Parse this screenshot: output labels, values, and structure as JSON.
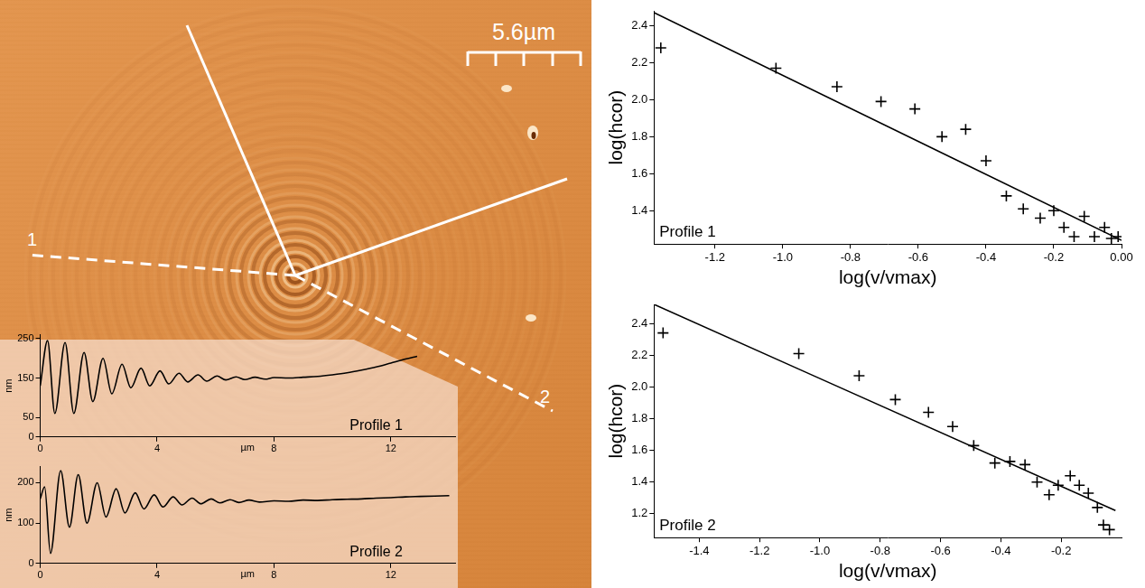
{
  "scale_bar": "5.6µm",
  "line_labels": [
    "1",
    "2"
  ],
  "chart_data": [
    {
      "type": "line",
      "title": "Profile 1",
      "xlabel": "µm",
      "ylabel": "nm",
      "color": "#000000",
      "x": [
        0,
        0.25,
        0.5,
        0.85,
        1.15,
        1.5,
        1.8,
        2.15,
        2.45,
        2.8,
        3.1,
        3.45,
        3.75,
        4.1,
        4.4,
        4.75,
        5.05,
        5.4,
        5.7,
        6.05,
        6.35,
        6.7,
        7.0,
        7.35,
        7.7,
        8.0,
        8.5,
        9.0,
        9.5,
        10.0,
        10.5,
        11.0,
        11.5,
        12.0,
        12.5,
        12.9
      ],
      "values": [
        130,
        245,
        60,
        240,
        60,
        215,
        90,
        200,
        110,
        185,
        125,
        175,
        130,
        168,
        135,
        162,
        140,
        158,
        142,
        155,
        145,
        153,
        146,
        152,
        147,
        151,
        150,
        152,
        154,
        158,
        163,
        170,
        178,
        188,
        198,
        205
      ],
      "xlim": [
        0,
        14.2
      ],
      "ylim": [
        0,
        260
      ],
      "xticks": [
        0,
        4,
        8,
        12
      ],
      "yticks": [
        0,
        50,
        150,
        250
      ],
      "grid": false
    },
    {
      "type": "line",
      "title": "Profile 2",
      "xlabel": "µm",
      "ylabel": "nm",
      "color": "#000000",
      "x": [
        0,
        0.15,
        0.35,
        0.7,
        1.0,
        1.3,
        1.6,
        1.95,
        2.25,
        2.6,
        2.9,
        3.25,
        3.55,
        3.9,
        4.2,
        4.55,
        4.85,
        5.2,
        5.5,
        5.85,
        6.15,
        6.5,
        6.8,
        7.15,
        7.5,
        8.0,
        8.5,
        9.0,
        9.5,
        10.0,
        10.5,
        11.0,
        11.5,
        12.0,
        12.5,
        13.0,
        13.5,
        14.0
      ],
      "values": [
        160,
        190,
        25,
        230,
        90,
        220,
        100,
        200,
        115,
        185,
        125,
        175,
        135,
        170,
        140,
        165,
        145,
        162,
        148,
        160,
        150,
        158,
        151,
        157,
        152,
        155,
        154,
        157,
        156,
        158,
        159,
        160,
        162,
        163,
        165,
        166,
        167,
        168
      ],
      "xlim": [
        0,
        14.2
      ],
      "ylim": [
        0,
        240
      ],
      "xticks": [
        0,
        4,
        8,
        12
      ],
      "yticks": [
        0,
        100,
        200
      ],
      "grid": false
    },
    {
      "type": "scatter",
      "title": "Profile 1",
      "xlabel": "log(v/vmax)",
      "ylabel": "log(hcor)",
      "xlim": [
        -1.38,
        0.0
      ],
      "ylim": [
        1.22,
        2.48
      ],
      "xticks": [
        -1.2,
        {
          "value": -1,
          "label": "-1.0"
        },
        -0.8,
        -0.6,
        -0.4,
        -0.2,
        {
          "value": 0,
          "label": "0.00"
        }
      ],
      "yticks": [
        1.4,
        1.6,
        1.8,
        {
          "value": 2,
          "label": "2.0"
        },
        2.2,
        2.4
      ],
      "grid": false,
      "series": [
        {
          "type": "scatter",
          "marker": "cross",
          "color": "#000000",
          "x": [
            -1.36,
            -1.02,
            -0.84,
            -0.71,
            -0.61,
            -0.53,
            -0.46,
            -0.4,
            -0.34,
            -0.29,
            -0.24,
            -0.2,
            -0.17,
            -0.14,
            -0.11,
            -0.08,
            -0.05,
            -0.03,
            -0.01
          ],
          "values": [
            2.28,
            2.17,
            2.07,
            1.99,
            1.95,
            1.8,
            1.84,
            1.67,
            1.48,
            1.41,
            1.36,
            1.4,
            1.31,
            1.26,
            1.37,
            1.26,
            1.31,
            1.25,
            1.26
          ]
        },
        {
          "type": "line",
          "line_style": "solid",
          "color": "#000000",
          "x": [
            -1.38,
            0.0
          ],
          "values": [
            2.47,
            1.24
          ]
        }
      ]
    },
    {
      "type": "scatter",
      "title": "Profile 2",
      "xlabel": "log(v/vmax)",
      "ylabel": "log(hcor)",
      "xlim": [
        -1.55,
        0.0
      ],
      "ylim": [
        1.05,
        2.52
      ],
      "xticks": [
        -1.4,
        -1.2,
        {
          "value": -1,
          "label": "-1.0"
        },
        -0.8,
        -0.6,
        -0.4,
        -0.2
      ],
      "yticks": [
        1.2,
        1.4,
        1.6,
        1.8,
        {
          "value": 2,
          "label": "2.0"
        },
        2.2,
        2.4
      ],
      "grid": false,
      "series": [
        {
          "type": "scatter",
          "marker": "cross",
          "color": "#000000",
          "x": [
            -1.52,
            -1.07,
            -0.87,
            -0.75,
            -0.64,
            -0.56,
            -0.49,
            -0.42,
            -0.37,
            -0.32,
            -0.28,
            -0.24,
            -0.21,
            -0.17,
            -0.14,
            -0.11,
            -0.08,
            -0.06,
            -0.04
          ],
          "values": [
            2.34,
            2.21,
            2.07,
            1.92,
            1.84,
            1.75,
            1.63,
            1.52,
            1.53,
            1.51,
            1.4,
            1.32,
            1.38,
            1.44,
            1.38,
            1.33,
            1.24,
            1.13,
            1.1
          ]
        },
        {
          "type": "line",
          "line_style": "solid",
          "color": "#000000",
          "x": [
            -1.55,
            -0.02
          ],
          "values": [
            2.52,
            1.22
          ]
        }
      ]
    }
  ]
}
